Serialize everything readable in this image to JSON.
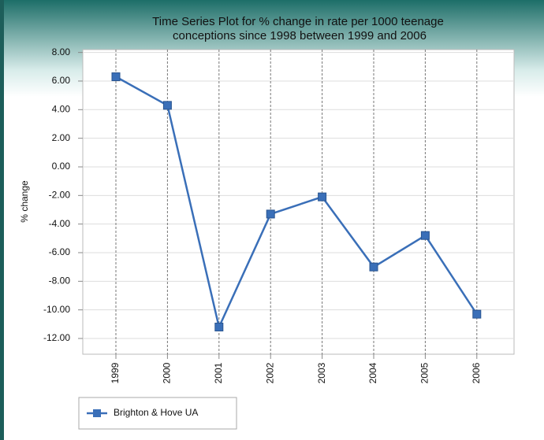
{
  "chart_data": {
    "type": "line",
    "title": [
      "Time Series Plot for % change in rate per 1000 teenage",
      "conceptions since 1998 between 1999 and 2006"
    ],
    "y_label": "% change",
    "categories": [
      "1999",
      "2000",
      "2001",
      "2002",
      "2003",
      "2004",
      "2005",
      "2006"
    ],
    "series": [
      {
        "name": "Brighton & Hove UA",
        "color": "#3a6fb8",
        "values": [
          6.3,
          4.3,
          -11.2,
          -3.3,
          -2.1,
          -7.0,
          -4.8,
          -10.3
        ]
      }
    ],
    "ylim": [
      -13.1,
      8.2
    ],
    "yticks": [
      {
        "value": 8,
        "label": "8.00"
      },
      {
        "value": 6,
        "label": "6.00"
      },
      {
        "value": 4,
        "label": "4.00"
      },
      {
        "value": 2,
        "label": "2.00"
      },
      {
        "value": 0,
        "label": "0.00"
      },
      {
        "value": -2,
        "label": "-2.00"
      },
      {
        "value": -4,
        "label": "-4.00"
      },
      {
        "value": -6,
        "label": "-6.00"
      },
      {
        "value": -8,
        "label": "-8.00"
      },
      {
        "value": -10,
        "label": "-10.00"
      },
      {
        "value": -12,
        "label": "-12.00"
      }
    ],
    "grid": true,
    "legend": "bottom-left"
  }
}
